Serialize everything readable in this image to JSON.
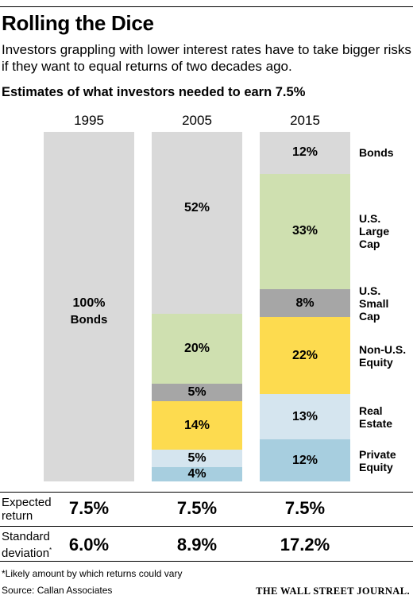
{
  "title": "Rolling the Dice",
  "subtitle": "Investors grappling with lower interest rates have to take bigger risks if they want to equal returns of two decades ago.",
  "chart_title": "Estimates of what investors needed to earn 7.5%",
  "chart_data": {
    "type": "bar",
    "stacked": true,
    "unit": "%",
    "categories": [
      "1995",
      "2005",
      "2015"
    ],
    "series": [
      {
        "name": "Bonds",
        "values": [
          100,
          52,
          12
        ],
        "color": "#d9d9d9"
      },
      {
        "name": "U.S. Large Cap",
        "values": [
          0,
          20,
          33
        ],
        "color": "#cfe0b0"
      },
      {
        "name": "U.S. Small Cap",
        "values": [
          0,
          5,
          8
        ],
        "color": "#a6a6a6"
      },
      {
        "name": "Non-U.S. Equity",
        "values": [
          0,
          14,
          22
        ],
        "color": "#fddb4f"
      },
      {
        "name": "Real Estate",
        "values": [
          0,
          5,
          13
        ],
        "color": "#d5e5ef"
      },
      {
        "name": "Private Equity",
        "values": [
          0,
          4,
          12
        ],
        "color": "#a7cedf"
      }
    ],
    "value_labels": [
      [
        "100%",
        "",
        "",
        "",
        "",
        ""
      ],
      [
        "52%",
        "20%",
        "5%",
        "14%",
        "5%",
        "4%"
      ],
      [
        "12%",
        "33%",
        "8%",
        "22%",
        "13%",
        "12%"
      ]
    ],
    "bonds_word_1995": "Bonds",
    "legend_labels": [
      "Bonds",
      "U.S.\nLarge\nCap",
      "U.S.\nSmall\nCap",
      "Non-U.S.\nEquity",
      "Real\nEstate",
      "Private\nEquity"
    ],
    "ylim": [
      0,
      100
    ]
  },
  "stats": {
    "expected_label": "Expected\nreturn",
    "expected_values": [
      "7.5%",
      "7.5%",
      "7.5%"
    ],
    "std_label": "Standard\ndeviation",
    "std_marker": "*",
    "std_values": [
      "6.0%",
      "8.9%",
      "17.2%"
    ]
  },
  "footnote": "*Likely amount by which returns could vary",
  "source": "Source: Callan Associates",
  "publisher": "THE WALL STREET JOURNAL."
}
